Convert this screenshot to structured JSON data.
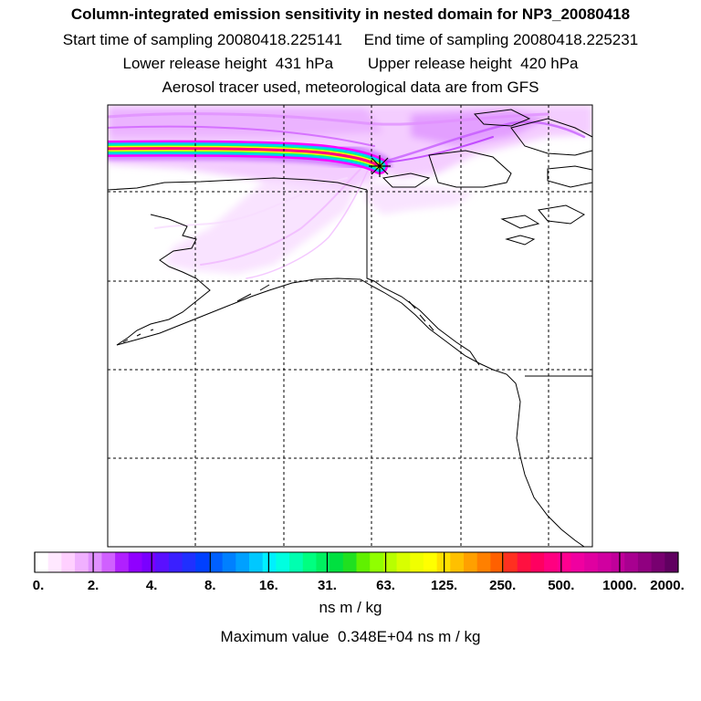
{
  "header": {
    "title": "Column-integrated emission sensitivity in nested domain for NP3_20080418",
    "sampling_line": "Start time of sampling 20080418.225141     End time of sampling 20080418.225231",
    "release_line": "Lower release height  431 hPa        Upper release height  420 hPa",
    "tracer_line": "Aerosol tracer used, meteorological data are from GFS"
  },
  "colorbar": {
    "tick_labels": [
      "0.",
      "2.",
      "4.",
      "8.",
      "16.",
      "31.",
      "63.",
      "125.",
      "250.",
      "500.",
      "1000.",
      "2000."
    ],
    "colors": [
      "#ffffff",
      "#ffe8ff",
      "#ffd0ff",
      "#f0b0ff",
      "#e090ff",
      "#d060ff",
      "#b020ff",
      "#9000ff",
      "#7a00ff",
      "#5a10ff",
      "#3a20ff",
      "#2030ff",
      "#0040ff",
      "#0060ff",
      "#0080ff",
      "#00a0ff",
      "#00c8ff",
      "#00f0ff",
      "#00ffe0",
      "#00ffb0",
      "#00ff80",
      "#00f060",
      "#00e040",
      "#20e020",
      "#60f000",
      "#90ff00",
      "#b8ff00",
      "#d8ff00",
      "#f0ff00",
      "#ffff00",
      "#ffe000",
      "#ffc000",
      "#ffa000",
      "#ff8000",
      "#ff6000",
      "#ff3020",
      "#ff1040",
      "#ff0060",
      "#ff0080",
      "#ff0090",
      "#f000a0",
      "#e000a0",
      "#d000a0",
      "#c0009a",
      "#a80090",
      "#900080",
      "#780070",
      "#600060"
    ],
    "unit": "ns m / kg"
  },
  "footer": {
    "max_value": "Maximum value  0.348E+04 ns m / kg"
  },
  "map": {
    "receptor_marker": "receptor-star-icon",
    "plume_colors": [
      "#ff00ff",
      "#ff0080",
      "#ffff00",
      "#00ff80",
      "#00c8ff",
      "#9000ff"
    ]
  }
}
